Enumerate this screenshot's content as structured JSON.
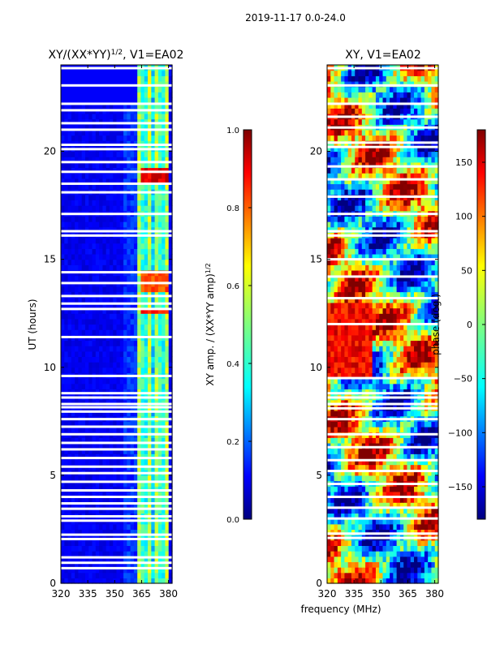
{
  "figure_title": "2019-11-17 0.0-24.0",
  "shared_xlabel": "frequency (MHz)",
  "colors": {
    "jet": [
      "#00007f",
      "#0000ff",
      "#007fff",
      "#00ffff",
      "#7fff7f",
      "#ffff00",
      "#ff7f00",
      "#ff0000",
      "#7f0000"
    ]
  },
  "chart_data": [
    {
      "type": "heatmap",
      "title_main": "XY/(XX*YY)",
      "title_sup": "1/2",
      "title_rest": ", V1=EA02",
      "ylabel": "UT (hours)",
      "xlim": [
        320,
        382
      ],
      "ylim": [
        0,
        24
      ],
      "xticks": [
        320,
        335,
        350,
        365,
        380
      ],
      "yticks": [
        0,
        5,
        10,
        15,
        20
      ],
      "colorbar": {
        "label_main": "XY amp. / (XX*YY amp)",
        "label_sup": "1/2",
        "range": [
          0.0,
          1.0
        ],
        "ticks": [
          "0.0",
          "0.2",
          "0.4",
          "0.6",
          "0.8",
          "1.0"
        ],
        "tick_values": [
          0.0,
          0.2,
          0.4,
          0.6,
          0.8,
          1.0
        ]
      },
      "gaps_hours": [
        0.7,
        0.95,
        1.2,
        2.05,
        2.25,
        2.9,
        3.1,
        3.45,
        3.7,
        4.0,
        4.3,
        4.7,
        5.1,
        5.4,
        5.8,
        6.2,
        6.5,
        6.9,
        7.25,
        7.6,
        7.95,
        8.15,
        8.3,
        8.6,
        8.8,
        9.6,
        11.4,
        12.7,
        12.95,
        13.3,
        13.9,
        14.4,
        16.1,
        16.3,
        17.1,
        18.1,
        18.5,
        19.05,
        19.5,
        20.1,
        20.3,
        21.0,
        21.3,
        21.9,
        22.2,
        23.05,
        23.85
      ],
      "high_amp_bands": [
        {
          "freq_range": [
            364,
            380
          ],
          "hours": [
            18.5,
            19.2
          ],
          "amp": 0.85
        },
        {
          "freq_range": [
            364,
            380
          ],
          "hours": [
            13.5,
            14.5
          ],
          "amp": 0.75
        },
        {
          "freq_range": [
            364,
            380
          ],
          "hours": [
            12.4,
            12.8
          ],
          "amp": 0.8
        }
      ]
    },
    {
      "type": "heatmap",
      "title_main": "XY, V1=EA02",
      "ylabel": "",
      "xlim": [
        320,
        382
      ],
      "ylim": [
        0,
        24
      ],
      "xticks": [
        320,
        335,
        350,
        365,
        380
      ],
      "yticks": [
        0,
        5,
        10,
        15,
        20
      ],
      "colorbar": {
        "label_main": "phase (deg.)",
        "range": [
          -180,
          180
        ],
        "ticks": [
          "150",
          "100",
          "50",
          "0",
          "−50",
          "−100",
          "−150"
        ],
        "tick_values": [
          150,
          100,
          50,
          0,
          -50,
          -100,
          -150
        ]
      },
      "gaps_hours": [
        2.1,
        2.3,
        3.0,
        3.5,
        4.0,
        4.6,
        5.2,
        5.7,
        6.3,
        6.9,
        7.6,
        8.1,
        8.3,
        8.6,
        8.8,
        9.5,
        12.0,
        13.2,
        14.2,
        15.0,
        16.1,
        16.3,
        17.1,
        17.9,
        18.7,
        19.3,
        20.2,
        20.4,
        21.1,
        21.6,
        22.2,
        23.05,
        23.85
      ]
    }
  ]
}
